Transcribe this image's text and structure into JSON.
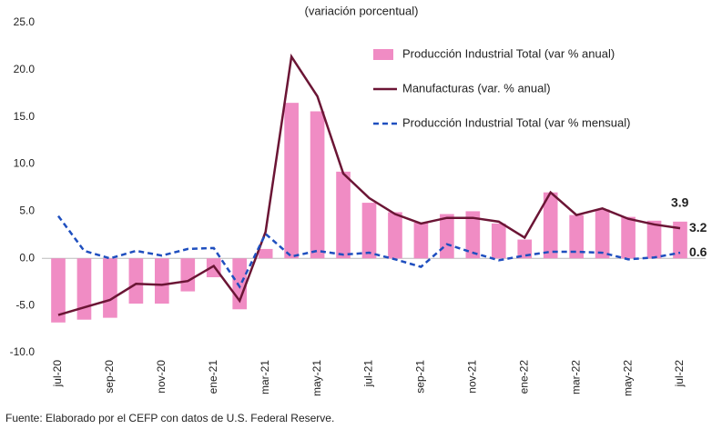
{
  "chart_data": {
    "type": "bar-line",
    "title": "(variación porcentual)",
    "source": "Fuente: Elaborado por el CEFP con datos de U.S. Federal Reserve.",
    "categories": [
      "jul-20",
      null,
      "sep-20",
      null,
      "nov-20",
      null,
      "ene-21",
      null,
      "mar-21",
      null,
      "may-21",
      null,
      "jul-21",
      null,
      "sep-21",
      null,
      "nov-21",
      null,
      "ene-22",
      null,
      "mar-22",
      null,
      "may-22",
      null,
      "jul-22"
    ],
    "series": [
      {
        "name": "Producción Industrial Total (var % anual)",
        "kind": "bar",
        "color": "#f08cc4",
        "values": [
          -6.8,
          -6.5,
          -6.3,
          -4.8,
          -4.8,
          -3.5,
          -2.0,
          -5.4,
          1.0,
          16.5,
          15.6,
          9.2,
          5.9,
          4.9,
          3.8,
          4.7,
          5.0,
          3.7,
          2.0,
          7.0,
          4.6,
          5.2,
          4.4,
          4.0,
          3.9
        ]
      },
      {
        "name": "Manufacturas (var. % anual)",
        "kind": "line",
        "color": "#6b1535",
        "values": [
          -6.0,
          -5.2,
          -4.4,
          -2.7,
          -2.8,
          -2.4,
          -0.8,
          -4.5,
          2.8,
          21.4,
          17.2,
          9.0,
          6.4,
          4.7,
          3.7,
          4.3,
          4.3,
          3.9,
          2.2,
          7.0,
          4.6,
          5.3,
          4.2,
          3.6,
          3.2
        ]
      },
      {
        "name": "Producción Industrial Total (var % mensual)",
        "kind": "dashed",
        "color": "#1f4fbf",
        "values": [
          4.5,
          0.8,
          0.0,
          0.8,
          0.3,
          1.0,
          1.1,
          -3.0,
          2.6,
          0.2,
          0.8,
          0.4,
          0.6,
          -0.1,
          -0.9,
          1.5,
          0.6,
          -0.2,
          0.3,
          0.7,
          0.7,
          0.6,
          -0.1,
          0.1,
          0.6
        ]
      }
    ],
    "ylim": [
      -10,
      25
    ],
    "yticks": [
      {
        "value": -10,
        "label": "-10.0"
      },
      {
        "value": -5,
        "label": "-5.0"
      },
      {
        "value": 0,
        "label": "0.0"
      },
      {
        "value": 5,
        "label": "5.0"
      },
      {
        "value": 10,
        "label": "10.0"
      },
      {
        "value": 15,
        "label": "15.0"
      },
      {
        "value": 20,
        "label": "20.0"
      },
      {
        "value": 25,
        "label": "25.0"
      }
    ]
  }
}
